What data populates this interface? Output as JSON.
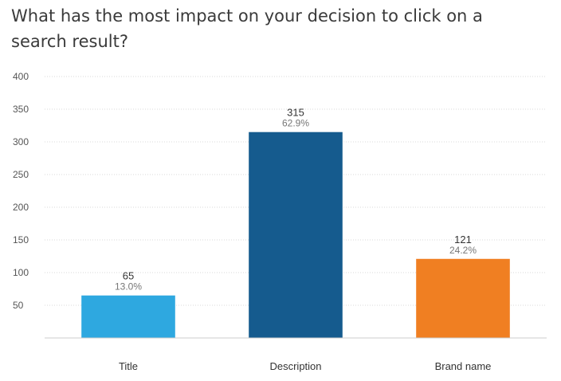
{
  "chart_data": {
    "type": "bar",
    "title": "What has the most impact on your decision to click on a search result?",
    "categories": [
      "Title",
      "Description",
      "Brand name"
    ],
    "values": [
      65,
      315,
      121
    ],
    "percent_labels": [
      "13.0%",
      "62.9%",
      "24.2%"
    ],
    "value_labels": [
      "65",
      "315",
      "121"
    ],
    "colors": [
      "#2ea8e0",
      "#155b8e",
      "#f07f22"
    ],
    "ylim": [
      0,
      400
    ],
    "yticks": [
      50,
      100,
      150,
      200,
      250,
      300,
      350,
      400
    ],
    "ytick_labels": [
      "50",
      "100",
      "150",
      "200",
      "250",
      "300",
      "350",
      "400"
    ],
    "grid": true,
    "xlabel": "",
    "ylabel": ""
  }
}
